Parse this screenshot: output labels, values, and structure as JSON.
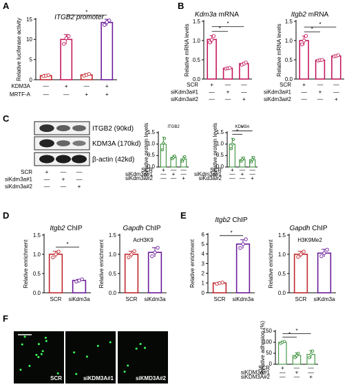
{
  "panel_labels": [
    "A",
    "B",
    "C",
    "D",
    "E",
    "F"
  ],
  "colors": {
    "red": "#c0272d",
    "magenta": "#c2185b",
    "purple": "#6a1b9a",
    "green": "#3a8f3a",
    "axis": "#000000",
    "dark": "#1a1a1a"
  },
  "chart_data": [
    {
      "id": "A",
      "type": "bar",
      "title": "ITGB2 promoter",
      "title_italic_part": "ITGB2",
      "ylabel": "Relative luciferase activity",
      "ylim": [
        0,
        15
      ],
      "yticks": [
        0,
        5,
        10,
        15
      ],
      "conditions": [
        {
          "name": "KDM3A",
          "signs": [
            "—",
            "+",
            "—",
            "+"
          ]
        },
        {
          "name": "MRTF-A",
          "signs": [
            "—",
            "—",
            "+",
            "+"
          ]
        }
      ],
      "values": [
        1.0,
        10.0,
        1.2,
        14.2
      ],
      "errors": [
        0.3,
        1.2,
        0.3,
        0.8
      ],
      "points": [
        [
          0.9,
          1.0,
          1.1
        ],
        [
          8.9,
          10.3,
          10.8
        ],
        [
          1.0,
          1.2,
          1.4
        ],
        [
          13.6,
          14.3,
          14.7
        ]
      ],
      "colors": [
        "#c0272d",
        "#c2185b",
        "#c0272d",
        "#6a1b9a"
      ],
      "significance": [
        {
          "from": 1,
          "to": 3,
          "label": "*"
        }
      ]
    },
    {
      "id": "B1",
      "type": "bar",
      "title": "Kdm3a mRNA",
      "title_italic_part": "Kdm3a",
      "ylabel": "Relative mRNA levels",
      "ylim": [
        0,
        1.5
      ],
      "yticks": [
        0.0,
        0.5,
        1.0,
        1.5
      ],
      "conditions": [
        {
          "name": "SCR",
          "signs": [
            "+",
            "—",
            "—"
          ]
        },
        {
          "name": "siKdm3a#1",
          "signs": [
            "—",
            "+",
            "—"
          ]
        },
        {
          "name": "siKdm3a#2",
          "signs": [
            "—",
            "—",
            "+"
          ]
        }
      ],
      "values": [
        1.03,
        0.28,
        0.4
      ],
      "errors": [
        0.1,
        0.01,
        0.03
      ],
      "points": [
        [
          0.95,
          1.02,
          1.12
        ],
        [
          0.27,
          0.28,
          0.29
        ],
        [
          0.37,
          0.4,
          0.43
        ]
      ],
      "colors": [
        "#c2185b",
        "#c2185b",
        "#c2185b"
      ],
      "significance": [
        {
          "from": 0,
          "to": 1,
          "label": "*"
        },
        {
          "from": 0,
          "to": 2,
          "label": "*"
        }
      ]
    },
    {
      "id": "B2",
      "type": "bar",
      "title": "Itgb2 mRNA",
      "title_italic_part": "Itgb2",
      "ylabel": "Relative mRNA levels",
      "ylim": [
        0,
        1.5
      ],
      "yticks": [
        0.0,
        0.5,
        1.0,
        1.5
      ],
      "conditions": [
        {
          "name": "SCR",
          "signs": [
            "+",
            "—",
            "—"
          ]
        },
        {
          "name": "siKdm3a#1",
          "signs": [
            "—",
            "+",
            "—"
          ]
        },
        {
          "name": "siKdm3a#2",
          "signs": [
            "—",
            "—",
            "+"
          ]
        }
      ],
      "values": [
        1.0,
        0.49,
        0.6
      ],
      "errors": [
        0.12,
        0.01,
        0.02
      ],
      "points": [
        [
          0.9,
          1.0,
          1.12
        ],
        [
          0.48,
          0.49,
          0.5
        ],
        [
          0.59,
          0.6,
          0.62
        ]
      ],
      "colors": [
        "#c2185b",
        "#c2185b",
        "#c2185b"
      ],
      "significance": [
        {
          "from": 0,
          "to": 1,
          "label": "*"
        },
        {
          "from": 0,
          "to": 2,
          "label": "*"
        }
      ]
    },
    {
      "id": "C1",
      "type": "bar",
      "title": "ITGB2",
      "ylabel": "Relative protein levels",
      "ylim": [
        0,
        1.5
      ],
      "yticks": [
        0.0,
        0.5,
        1.0,
        1.5
      ],
      "conditions": [
        {
          "name": "SCR",
          "signs": [
            "+",
            "—",
            "—"
          ]
        },
        {
          "name": "siKdm3a#1",
          "signs": [
            "—",
            "+",
            "—"
          ]
        },
        {
          "name": "siKdm3a#2",
          "signs": [
            "—",
            "—",
            "+"
          ]
        }
      ],
      "values": [
        1.0,
        0.42,
        0.35
      ],
      "errors": [
        0.3,
        0.08,
        0.12
      ],
      "points": [
        [
          0.75,
          1.05,
          1.25
        ],
        [
          0.36,
          0.42,
          0.48
        ],
        [
          0.25,
          0.35,
          0.45
        ]
      ],
      "colors": [
        "#3a8f3a",
        "#3a8f3a",
        "#3a8f3a"
      ],
      "significance": []
    },
    {
      "id": "C2",
      "type": "bar",
      "title": "KDM3A",
      "ylabel": "Relative protein levels",
      "ylim": [
        0,
        1.5
      ],
      "yticks": [
        0.0,
        0.5,
        1.0,
        1.5
      ],
      "conditions": [
        {
          "name": "SCR",
          "signs": [
            "+",
            "—",
            "—"
          ]
        },
        {
          "name": "siKdm3a#1",
          "signs": [
            "—",
            "+",
            "—"
          ]
        },
        {
          "name": "siKd3a#2",
          "signs": [
            "—",
            "—",
            "+"
          ]
        }
      ],
      "values": [
        1.0,
        0.32,
        0.32
      ],
      "errors": [
        0.25,
        0.1,
        0.13
      ],
      "points": [
        [
          0.8,
          1.0,
          1.2
        ],
        [
          0.25,
          0.32,
          0.4
        ],
        [
          0.22,
          0.32,
          0.42
        ]
      ],
      "colors": [
        "#3a8f3a",
        "#3a8f3a",
        "#3a8f3a"
      ],
      "significance": [
        {
          "from": 0,
          "to": 1,
          "label": "*"
        },
        {
          "from": 0,
          "to": 2,
          "label": "*"
        }
      ]
    },
    {
      "id": "D1",
      "type": "bar",
      "title": "Itgb2 ChIP",
      "title_italic_part": "Itgb2",
      "ylabel": "Relative enrichment",
      "ylim": [
        0,
        1.5
      ],
      "yticks": [
        0.0,
        0.5,
        1.0,
        1.5
      ],
      "categories": [
        "SCR",
        "siKdm3a"
      ],
      "values": [
        1.0,
        0.32
      ],
      "errors": [
        0.08,
        0.03
      ],
      "points": [
        [
          0.92,
          1.0,
          1.07
        ],
        [
          0.29,
          0.32,
          0.35
        ]
      ],
      "colors": [
        "#c0272d",
        "#6a1b9a"
      ],
      "significance": [
        {
          "from": 0,
          "to": 1,
          "label": "*"
        }
      ]
    },
    {
      "id": "D2",
      "type": "bar",
      "title": "Gapdh ChIP",
      "title_italic_part": "Gapdh",
      "annotation": "AcH3K9",
      "ylabel": "Relative enrichment",
      "ylim": [
        0,
        1.5
      ],
      "yticks": [
        0.0,
        0.5,
        1.0,
        1.5
      ],
      "categories": [
        "SCR",
        "siKdm3a"
      ],
      "values": [
        1.0,
        1.05
      ],
      "errors": [
        0.08,
        0.12
      ],
      "points": [
        [
          0.92,
          1.0,
          1.08
        ],
        [
          0.95,
          1.05,
          1.17
        ]
      ],
      "colors": [
        "#c0272d",
        "#6a1b9a"
      ],
      "significance": []
    },
    {
      "id": "E1",
      "type": "bar",
      "title": "Itgb2 ChIP",
      "title_italic_part": "Itgb2",
      "ylabel": "Relative enrichment",
      "ylim": [
        0,
        6
      ],
      "yticks": [
        0,
        1,
        2,
        3,
        4,
        5,
        6
      ],
      "categories": [
        "SCR",
        "siKdm3a"
      ],
      "values": [
        1.0,
        5.0
      ],
      "errors": [
        0.08,
        0.45
      ],
      "points": [
        [
          0.92,
          1.0,
          1.06
        ],
        [
          4.6,
          5.0,
          5.5
        ]
      ],
      "colors": [
        "#c0272d",
        "#6a1b9a"
      ],
      "significance": [
        {
          "from": 0,
          "to": 1,
          "label": "*"
        }
      ]
    },
    {
      "id": "E2",
      "type": "bar",
      "title": "Gapdh ChIP",
      "title_italic_part": "Gapdh",
      "annotation": "H3K9Me2",
      "ylabel": "Relative enrichment",
      "ylim": [
        0,
        1.5
      ],
      "yticks": [
        0.0,
        0.5,
        1.0,
        1.5
      ],
      "categories": [
        "SCR",
        "siKdm3a"
      ],
      "values": [
        1.0,
        1.03
      ],
      "errors": [
        0.08,
        0.1
      ],
      "points": [
        [
          0.93,
          1.0,
          1.07
        ],
        [
          0.95,
          1.03,
          1.12
        ]
      ],
      "colors": [
        "#c0272d",
        "#6a1b9a"
      ],
      "significance": []
    },
    {
      "id": "F",
      "type": "bar",
      "ylabel": "Relative adhesion (%)",
      "ylim": [
        0,
        150
      ],
      "yticks": [
        0,
        50,
        100,
        150
      ],
      "conditions": [
        {
          "name": "SCR",
          "signs": [
            "+",
            "—",
            "—"
          ]
        },
        {
          "name": "siKDM3A#1",
          "signs": [
            "—",
            "+",
            "—"
          ]
        },
        {
          "name": "siKDM3A#2",
          "signs": [
            "—",
            "—",
            "+"
          ]
        }
      ],
      "values": [
        100,
        40,
        45
      ],
      "errors": [
        5,
        12,
        18
      ],
      "points": [
        [
          95,
          100,
          104
        ],
        [
          30,
          40,
          50
        ],
        [
          30,
          45,
          60
        ]
      ],
      "colors": [
        "#3a8f3a",
        "#3a8f3a",
        "#3a8f3a"
      ],
      "significance": [
        {
          "from": 0,
          "to": 1,
          "label": "*"
        },
        {
          "from": 0,
          "to": 2,
          "label": "*"
        }
      ]
    }
  ],
  "blot": {
    "bands": [
      "ITGB2 (90kd)",
      "KDM3A (170kd)",
      "β-actin (42kd)"
    ],
    "intensities": [
      [
        0.85,
        0.5,
        0.45
      ],
      [
        0.95,
        0.45,
        0.3
      ],
      [
        1.0,
        1.0,
        1.0
      ]
    ],
    "conditions": [
      {
        "name": "SCR",
        "signs": [
          "+",
          "—",
          "—"
        ]
      },
      {
        "name": "siKdm3a#1",
        "signs": [
          "—",
          "+",
          "—"
        ]
      },
      {
        "name": "siKdm3a#2",
        "signs": [
          "—",
          "—",
          "+"
        ]
      }
    ]
  },
  "micrographs": {
    "labels": [
      "SCR",
      "siKDM3A#1",
      "siKMD3A#2"
    ],
    "dot_color": "#3dff5a",
    "cell_counts": [
      12,
      5,
      5
    ]
  }
}
